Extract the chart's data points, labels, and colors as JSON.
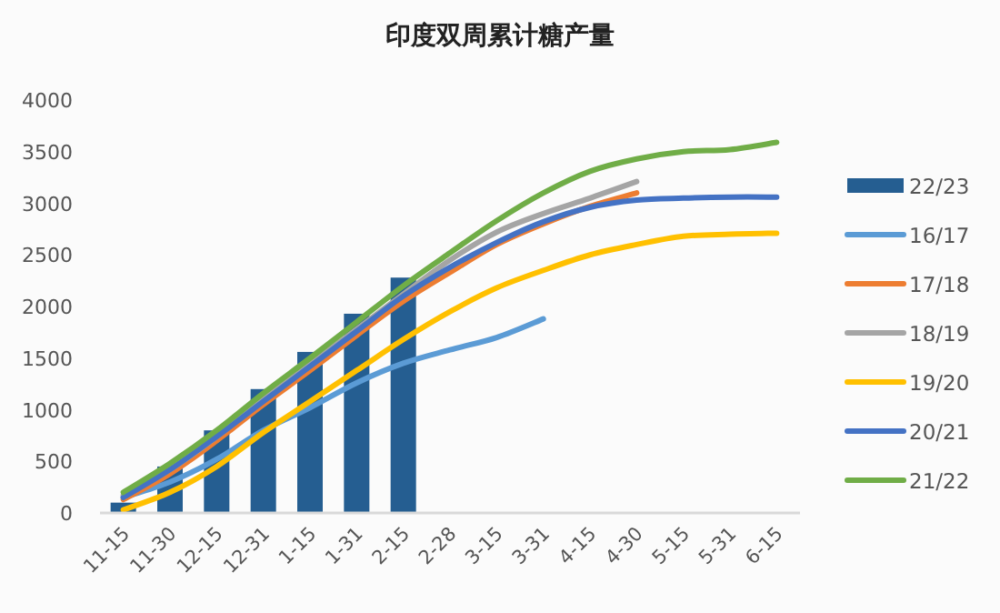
{
  "chart_data": {
    "type": "line",
    "title": "印度双周累计糖产量",
    "categories": [
      "11-15",
      "11-30",
      "12-15",
      "12-31",
      "1-15",
      "1-31",
      "2-15",
      "2-28",
      "3-15",
      "3-31",
      "4-15",
      "4-30",
      "5-15",
      "5-31",
      "6-15"
    ],
    "ylim": [
      0,
      4000
    ],
    "yticks": [
      0,
      500,
      1000,
      1500,
      2000,
      2500,
      3000,
      3500,
      4000
    ],
    "grid": false,
    "legend": "right",
    "series": [
      {
        "name": "22/23",
        "type": "bar",
        "color": "#255e91",
        "values": [
          100,
          450,
          800,
          1200,
          1560,
          1930,
          2280,
          null,
          null,
          null,
          null,
          null,
          null,
          null,
          null
        ]
      },
      {
        "name": "16/17",
        "color": "#5b9bd5",
        "values": [
          150,
          300,
          520,
          800,
          1020,
          1260,
          1450,
          1580,
          1700,
          1880,
          null,
          null,
          null,
          null,
          null
        ]
      },
      {
        "name": "17/18",
        "color": "#ed7d31",
        "values": [
          130,
          380,
          700,
          1050,
          1380,
          1720,
          2050,
          2330,
          2600,
          2800,
          2970,
          3100,
          null,
          null,
          null
        ]
      },
      {
        "name": "18/19",
        "color": "#a5a5a5",
        "values": [
          170,
          420,
          740,
          1100,
          1440,
          1780,
          2120,
          2450,
          2720,
          2900,
          3050,
          3210,
          null,
          null,
          null
        ]
      },
      {
        "name": "19/20",
        "color": "#ffc000",
        "values": [
          30,
          200,
          450,
          780,
          1080,
          1380,
          1680,
          1950,
          2180,
          2350,
          2500,
          2600,
          2680,
          2700,
          2710
        ]
      },
      {
        "name": "20/21",
        "color": "#4472c4",
        "values": [
          150,
          420,
          740,
          1080,
          1420,
          1760,
          2100,
          2380,
          2620,
          2820,
          2960,
          3030,
          3050,
          3060,
          3060
        ]
      },
      {
        "name": "21/22",
        "color": "#70ad47",
        "values": [
          200,
          480,
          800,
          1160,
          1500,
          1850,
          2200,
          2520,
          2830,
          3100,
          3310,
          3430,
          3500,
          3520,
          3590
        ]
      }
    ]
  }
}
